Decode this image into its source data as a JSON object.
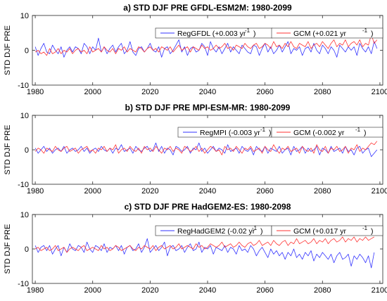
{
  "chart_data": [
    {
      "type": "line",
      "title": "a) STD DJF PRE GFDL-ESM2M: 1980-2099",
      "xlabel": "",
      "ylabel": "STD DJF PRE",
      "xlim": [
        1979,
        2101
      ],
      "ylim": [
        -10,
        10
      ],
      "xticks": [
        1980,
        2000,
        2020,
        2040,
        2060,
        2080,
        2100
      ],
      "yticks": [
        -10,
        0,
        10
      ],
      "legend_position": "top-right",
      "series": [
        {
          "name": "RegGFDL",
          "trend_label": "(+0.003 yr",
          "trend_exp": "-1",
          "color": "#3333ff",
          "x_start": 1980,
          "values": [
            1.0,
            -1.5,
            0.5,
            2.0,
            -0.5,
            -1.0,
            1.5,
            0.0,
            -1.0,
            1.0,
            -2.0,
            0.0,
            1.0,
            -0.5,
            1.0,
            0.5,
            -1.0,
            2.0,
            1.0,
            -1.0,
            1.0,
            0.0,
            3.5,
            -0.5,
            1.0,
            -1.0,
            0.5,
            1.5,
            -0.5,
            1.0,
            2.0,
            -1.0,
            0.0,
            2.5,
            -0.5,
            -1.5,
            0.5,
            1.0,
            -0.5,
            0.5,
            2.0,
            0.0,
            -0.5,
            1.0,
            -2.0,
            0.5,
            1.0,
            -1.0,
            0.0,
            1.5,
            3.0,
            -0.5,
            1.0,
            -1.5,
            0.5,
            1.0,
            -0.5,
            0.0,
            2.0,
            1.0,
            -1.5,
            2.5,
            0.5,
            -0.5,
            1.0,
            -1.0,
            0.5,
            2.0,
            -0.5,
            1.0,
            0.0,
            -1.0,
            1.5,
            0.5,
            -0.5,
            -1.0,
            1.5,
            1.0,
            -1.5,
            0.5,
            2.0,
            -0.5,
            1.0,
            -1.0,
            0.0,
            1.5,
            -0.5,
            1.0,
            2.5,
            -1.0,
            0.5,
            0.0,
            1.0,
            -1.5,
            0.5,
            1.0,
            -0.5,
            2.0,
            0.0,
            -1.0,
            1.5,
            0.5,
            -1.0,
            1.0,
            0.0,
            -2.0,
            1.5,
            0.5,
            -0.5,
            1.0,
            0.0,
            1.0,
            -1.5,
            2.0,
            0.5,
            -0.5,
            1.0,
            -1.0,
            2.5,
            0.5
          ]
        },
        {
          "name": "GCM",
          "trend_label": "(+0.021 yr",
          "trend_exp": "-1",
          "color": "#ff3333",
          "x_start": 1980,
          "values": [
            -0.5,
            0.0,
            -1.0,
            -0.5,
            -1.5,
            0.5,
            -1.0,
            -0.5,
            0.5,
            -1.0,
            0.0,
            -0.5,
            0.5,
            -1.0,
            0.0,
            0.5,
            -0.5,
            0.0,
            -1.0,
            1.0,
            -0.5,
            0.0,
            0.5,
            -0.5,
            1.0,
            0.0,
            -0.5,
            0.5,
            -1.0,
            0.5,
            0.0,
            1.0,
            -0.5,
            0.5,
            0.0,
            -0.5,
            1.0,
            0.5,
            -0.5,
            0.5,
            1.0,
            0.0,
            0.5,
            -0.5,
            1.0,
            0.5,
            0.0,
            1.0,
            -0.5,
            0.5,
            1.5,
            0.0,
            0.5,
            1.0,
            -0.5,
            1.0,
            0.5,
            0.0,
            1.5,
            0.5,
            1.0,
            0.0,
            0.5,
            1.5,
            0.5,
            1.0,
            2.0,
            0.5,
            1.0,
            0.0,
            1.5,
            1.0,
            0.5,
            2.0,
            1.0,
            0.5,
            1.5,
            2.0,
            0.5,
            1.0,
            2.0,
            1.5,
            0.5,
            2.5,
            1.0,
            1.5,
            0.5,
            2.0,
            1.0,
            2.5,
            1.0,
            0.5,
            2.0,
            1.5,
            1.0,
            2.5,
            0.5,
            1.5,
            2.0,
            1.0,
            2.5,
            1.5,
            0.5,
            2.0,
            3.0,
            1.0,
            2.0,
            1.5,
            3.0,
            1.0,
            2.0,
            2.5,
            1.5,
            3.0,
            1.0,
            2.0,
            1.5,
            4.5,
            2.0,
            3.0
          ]
        }
      ]
    },
    {
      "type": "line",
      "title": "b) STD DJF PRE MPI-ESM-MR: 1980-2099",
      "xlabel": "",
      "ylabel": "STD DJF PRE",
      "xlim": [
        1979,
        2101
      ],
      "ylim": [
        -10,
        10
      ],
      "xticks": [
        1980,
        2000,
        2020,
        2040,
        2060,
        2080,
        2100
      ],
      "yticks": [
        -10,
        0,
        10
      ],
      "legend_position": "top-right",
      "series": [
        {
          "name": "RegMPI",
          "trend_label": "(-0.003 yr",
          "trend_exp": "-1",
          "color": "#3333ff",
          "x_start": 1980,
          "values": [
            0.5,
            -1.0,
            0.0,
            1.0,
            -0.5,
            0.5,
            -1.0,
            0.0,
            0.5,
            -0.5,
            1.0,
            -1.0,
            0.0,
            0.5,
            -0.5,
            0.0,
            1.0,
            -0.5,
            0.5,
            -1.0,
            0.0,
            0.5,
            -0.5,
            1.0,
            0.0,
            -0.5,
            0.5,
            -1.0,
            0.5,
            0.0,
            1.5,
            -0.5,
            0.0,
            0.5,
            -1.0,
            1.0,
            0.0,
            -0.5,
            0.5,
            1.0,
            -0.5,
            0.0,
            2.0,
            -0.5,
            1.0,
            -1.0,
            0.5,
            0.0,
            -1.5,
            1.0,
            0.5,
            -0.5,
            0.0,
            1.0,
            -1.0,
            0.5,
            0.0,
            2.0,
            -0.5,
            0.5,
            -1.0,
            0.0,
            1.0,
            -0.5,
            0.5,
            0.0,
            -1.0,
            1.5,
            -0.5,
            0.0,
            0.5,
            -1.0,
            1.0,
            0.0,
            -0.5,
            0.5,
            -1.5,
            1.0,
            0.0,
            -0.5,
            1.0,
            -1.0,
            0.5,
            0.0,
            -0.5,
            1.0,
            -1.0,
            0.0,
            0.5,
            -1.5,
            1.0,
            -0.5,
            0.0,
            1.0,
            -1.0,
            0.5,
            -0.5,
            0.0,
            1.0,
            -1.5,
            0.5,
            0.0,
            -1.0,
            1.0,
            -0.5,
            0.0,
            0.5,
            -1.0,
            1.0,
            -0.5,
            0.0,
            -1.5,
            0.5,
            1.0,
            -1.0,
            0.0,
            0.5,
            -2.0,
            -1.0,
            0.0
          ]
        },
        {
          "name": "GCM",
          "trend_label": "(-0.002 yr",
          "trend_exp": "-1",
          "color": "#ff3333",
          "x_start": 1980,
          "values": [
            -0.5,
            0.5,
            0.0,
            -1.0,
            0.5,
            0.0,
            -0.5,
            1.0,
            0.0,
            -0.5,
            0.5,
            1.0,
            -0.5,
            0.0,
            0.5,
            -1.0,
            0.0,
            0.5,
            1.0,
            -0.5,
            0.0,
            -1.0,
            0.5,
            0.0,
            1.0,
            -0.5,
            0.5,
            0.0,
            1.5,
            -1.0,
            0.0,
            0.5,
            -0.5,
            1.0,
            0.0,
            -0.5,
            0.5,
            -1.0,
            1.0,
            0.0,
            0.5,
            -0.5,
            1.0,
            0.0,
            -1.0,
            0.5,
            0.0,
            1.0,
            -0.5,
            0.5,
            0.0,
            -1.0,
            1.0,
            0.5,
            -0.5,
            0.0,
            1.0,
            -0.5,
            0.5,
            -1.0,
            0.0,
            1.0,
            0.5,
            -0.5,
            0.0,
            -1.5,
            1.0,
            0.0,
            0.5,
            -0.5,
            1.0,
            0.0,
            -1.0,
            0.5,
            0.0,
            1.0,
            -0.5,
            0.0,
            0.5,
            -1.0,
            1.0,
            0.0,
            -0.5,
            1.5,
            0.0,
            -1.0,
            0.5,
            0.0,
            1.0,
            -0.5,
            0.0,
            0.5,
            -1.0,
            1.0,
            0.0,
            -0.5,
            0.5,
            -1.0,
            1.5,
            0.0,
            -0.5,
            1.0,
            -1.0,
            0.5,
            0.0,
            1.0,
            -0.5,
            0.0,
            1.0,
            -1.0,
            0.5,
            0.0,
            1.5,
            -0.5,
            0.5,
            0.0,
            1.0,
            2.0,
            1.5,
            2.5
          ]
        }
      ]
    },
    {
      "type": "line",
      "title": "c) STD DJF PRE HadGEM2-ES: 1980-2098",
      "xlabel": "",
      "ylabel": "STD DJF PRE",
      "xlim": [
        1979,
        2101
      ],
      "ylim": [
        -10,
        10
      ],
      "xticks": [
        1980,
        2000,
        2020,
        2040,
        2060,
        2080,
        2100
      ],
      "yticks": [
        -10,
        0,
        10
      ],
      "legend_position": "top-right",
      "series": [
        {
          "name": "RegHadGEM2",
          "trend_label": "(-0.02 yr",
          "trend_exp": "-1",
          "color": "#3333ff",
          "x_start": 1980,
          "values": [
            1.0,
            -1.0,
            0.5,
            1.0,
            -0.5,
            1.0,
            -1.5,
            0.0,
            1.0,
            -2.0,
            0.5,
            -1.0,
            1.5,
            0.0,
            -0.5,
            1.0,
            0.5,
            -1.0,
            2.0,
            0.0,
            -1.0,
            1.0,
            0.5,
            -0.5,
            1.5,
            -1.0,
            0.5,
            0.0,
            1.0,
            -0.5,
            1.0,
            -1.5,
            0.5,
            1.0,
            -0.5,
            0.0,
            1.5,
            -1.0,
            0.5,
            3.0,
            -1.0,
            0.0,
            1.0,
            -0.5,
            0.5,
            2.0,
            -2.0,
            0.5,
            1.0,
            -0.5,
            0.0,
            1.0,
            -1.0,
            0.5,
            1.5,
            -0.5,
            0.0,
            2.0,
            -1.0,
            0.5,
            0.0,
            1.0,
            -1.5,
            0.5,
            0.0,
            -0.5,
            1.0,
            -1.0,
            0.5,
            0.0,
            -1.5,
            1.0,
            -0.5,
            0.0,
            -1.0,
            1.0,
            0.0,
            -2.0,
            -0.5,
            0.5,
            -1.0,
            -2.5,
            0.0,
            -1.5,
            -0.5,
            -2.0,
            -1.0,
            -3.0,
            -1.0,
            -2.0,
            0.0,
            -2.5,
            -1.5,
            -3.0,
            -1.0,
            -2.0,
            -0.5,
            -3.5,
            -1.5,
            -2.5,
            -1.0,
            -2.0,
            -3.0,
            -1.5,
            -4.0,
            -2.0,
            -1.0,
            -3.0,
            -2.5,
            -1.5,
            -5.0,
            -2.0,
            -3.0,
            -1.5,
            -2.5,
            -4.0,
            -2.0,
            -5.5,
            -1.0
          ]
        },
        {
          "name": "GCM",
          "trend_label": "(+0.017 yr",
          "trend_exp": "-1",
          "color": "#ff3333",
          "x_start": 1980,
          "values": [
            0.0,
            0.5,
            -0.5,
            0.0,
            0.5,
            -0.5,
            0.0,
            1.0,
            -0.5,
            0.0,
            0.5,
            -1.0,
            0.0,
            0.5,
            0.0,
            -0.5,
            0.5,
            1.0,
            -0.5,
            0.0,
            0.5,
            0.0,
            -0.5,
            1.0,
            0.0,
            0.5,
            -0.5,
            0.0,
            1.0,
            0.5,
            -0.5,
            0.0,
            0.5,
            1.0,
            0.0,
            -0.5,
            0.5,
            0.0,
            1.0,
            0.5,
            0.0,
            1.0,
            -0.5,
            0.5,
            1.0,
            0.0,
            0.5,
            1.0,
            0.0,
            0.5,
            1.5,
            0.0,
            0.5,
            1.0,
            0.5,
            0.0,
            1.5,
            0.5,
            1.0,
            0.0,
            0.5,
            1.5,
            1.0,
            0.5,
            1.0,
            2.0,
            0.5,
            1.0,
            1.5,
            0.5,
            1.0,
            2.0,
            1.0,
            0.5,
            1.5,
            2.0,
            1.0,
            1.5,
            2.5,
            1.0,
            1.5,
            2.0,
            1.0,
            2.5,
            1.5,
            1.0,
            2.0,
            2.5,
            1.0,
            2.0,
            1.5,
            3.0,
            1.5,
            2.0,
            2.5,
            1.5,
            2.0,
            3.0,
            1.5,
            2.5,
            2.0,
            3.0,
            1.5,
            2.5,
            3.0,
            2.0,
            2.5,
            3.5,
            2.0,
            3.0,
            2.5,
            3.5,
            2.0,
            3.0,
            2.5,
            3.5,
            2.5,
            3.0,
            3.5
          ]
        }
      ]
    }
  ]
}
